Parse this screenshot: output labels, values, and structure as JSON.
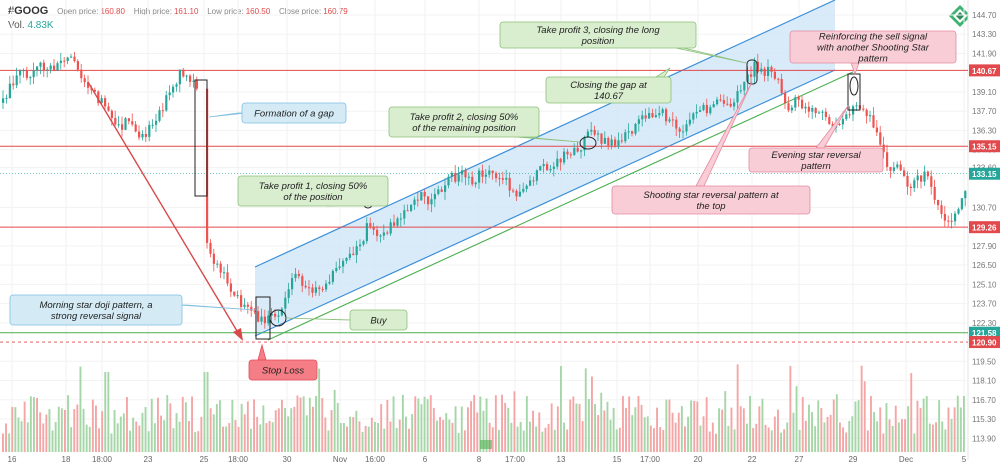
{
  "header": {
    "symbol": "#GOOG",
    "open_label": "Open price:",
    "open_value": "160.80",
    "high_label": "High price:",
    "high_value": "161.10",
    "low_label": "Low price:",
    "low_value": "160.50",
    "close_label": "Close price:",
    "close_value": "160.79",
    "vol_label": "Vol.",
    "vol_value": "4.83K"
  },
  "colors": {
    "up": "#26a69a",
    "down": "#ef5350",
    "red_line": "#e2494c",
    "green_line": "#4caf50",
    "channel_fill": "#cfe6f7",
    "channel_line": "#3b8fd9",
    "arrow": "#d84a4a"
  },
  "chart_data": {
    "type": "candlestick",
    "title": "",
    "ylim": [
      112.9,
      145.5
    ],
    "y_ticks": [
      144.7,
      143.3,
      141.9,
      139.1,
      137.7,
      136.3,
      134.9,
      133.6,
      130.7,
      127.9,
      126.5,
      125.1,
      123.7,
      122.3,
      119.5,
      118.1,
      116.7,
      115.3,
      113.9
    ],
    "x_tick_labels": [
      "16",
      "18",
      "18:00",
      "23",
      "25",
      "18:00",
      "30",
      "Nov",
      "16:00",
      "6",
      "8",
      "17:00",
      "13",
      "15",
      "17:00",
      "20",
      "22",
      "27",
      "29",
      "Dec",
      "5"
    ],
    "price_levels": [
      {
        "label": "140.67",
        "value": 140.67,
        "kind": "resistance"
      },
      {
        "label": "135.15",
        "value": 135.15,
        "kind": "resistance"
      },
      {
        "label": "133.15",
        "value": 133.15,
        "kind": "current"
      },
      {
        "label": "129.26",
        "value": 129.26,
        "kind": "resistance"
      },
      {
        "label": "121.58",
        "value": 121.58,
        "kind": "support"
      },
      {
        "label": "120.90",
        "value": 120.9,
        "kind": "stop"
      }
    ],
    "annotations": [
      {
        "text": "Formation of a gap",
        "style": "blue"
      },
      {
        "text": "Take profit 1, closing 50% of the position",
        "style": "green"
      },
      {
        "text": "Take profit 2, closing 50% of the remaining position",
        "style": "green"
      },
      {
        "text": "Closing the gap at 140.67",
        "style": "green"
      },
      {
        "text": "Take profit 3, closing the long position",
        "style": "green"
      },
      {
        "text": "Reinforcing the sell signal with another Shooting Star pattern",
        "style": "pink"
      },
      {
        "text": "Evening star reversal pattern",
        "style": "pink"
      },
      {
        "text": "Shooting star reversal pattern at the top",
        "style": "pink"
      },
      {
        "text": "Morning star doji pattern, a strong reversal signal",
        "style": "blue"
      },
      {
        "text": "Buy",
        "style": "green"
      },
      {
        "text": "Stop Loss",
        "style": "red"
      }
    ],
    "price_path": [
      [
        0,
        138.3
      ],
      [
        10,
        139.6
      ],
      [
        20,
        140.4
      ],
      [
        30,
        140.2
      ],
      [
        40,
        141.1
      ],
      [
        50,
        140.6
      ],
      [
        60,
        141.4
      ],
      [
        70,
        141.7
      ],
      [
        80,
        140.4
      ],
      [
        90,
        139.0
      ],
      [
        100,
        138.5
      ],
      [
        110,
        137.6
      ],
      [
        120,
        136.3
      ],
      [
        125,
        137.5
      ],
      [
        130,
        137.0
      ],
      [
        140,
        135.8
      ],
      [
        150,
        136.5
      ],
      [
        160,
        137.9
      ],
      [
        170,
        139.2
      ],
      [
        180,
        140.5
      ],
      [
        190,
        140.1
      ],
      [
        197,
        139.6
      ],
      [
        205,
        128.6
      ],
      [
        210,
        127.2
      ],
      [
        215,
        126.7
      ],
      [
        220,
        126.0
      ],
      [
        225,
        125.5
      ],
      [
        230,
        124.5
      ],
      [
        238,
        123.8
      ],
      [
        248,
        123.4
      ],
      [
        255,
        122.6
      ],
      [
        262,
        122.4
      ],
      [
        270,
        123.0
      ],
      [
        278,
        122.8
      ],
      [
        286,
        124.3
      ],
      [
        292,
        126.0
      ],
      [
        300,
        125.4
      ],
      [
        310,
        124.9
      ],
      [
        320,
        124.5
      ],
      [
        330,
        125.8
      ],
      [
        340,
        126.3
      ],
      [
        350,
        127.2
      ],
      [
        360,
        128.0
      ],
      [
        368,
        129.6
      ],
      [
        375,
        128.4
      ],
      [
        382,
        128.9
      ],
      [
        390,
        129.3
      ],
      [
        400,
        130.2
      ],
      [
        410,
        131.0
      ],
      [
        420,
        131.6
      ],
      [
        430,
        131.1
      ],
      [
        440,
        131.9
      ],
      [
        450,
        132.8
      ],
      [
        460,
        133.2
      ],
      [
        470,
        132.6
      ],
      [
        480,
        133.1
      ],
      [
        490,
        133.5
      ],
      [
        500,
        132.8
      ],
      [
        510,
        132.2
      ],
      [
        520,
        131.6
      ],
      [
        530,
        132.7
      ],
      [
        540,
        133.4
      ],
      [
        550,
        133.9
      ],
      [
        560,
        134.3
      ],
      [
        570,
        134.6
      ],
      [
        580,
        135.1
      ],
      [
        590,
        136.2
      ],
      [
        600,
        135.6
      ],
      [
        610,
        135.3
      ],
      [
        620,
        135.8
      ],
      [
        630,
        136.4
      ],
      [
        640,
        137.0
      ],
      [
        650,
        137.6
      ],
      [
        660,
        137.9
      ],
      [
        670,
        136.8
      ],
      [
        680,
        136.2
      ],
      [
        690,
        137.1
      ],
      [
        700,
        137.8
      ],
      [
        710,
        138.0
      ],
      [
        720,
        138.4
      ],
      [
        730,
        138.2
      ],
      [
        740,
        139.1
      ],
      [
        748,
        140.4
      ],
      [
        755,
        141.1
      ],
      [
        762,
        140.6
      ],
      [
        770,
        140.5
      ],
      [
        778,
        139.6
      ],
      [
        786,
        138.0
      ],
      [
        795,
        138.4
      ],
      [
        805,
        138.0
      ],
      [
        815,
        137.7
      ],
      [
        825,
        137.2
      ],
      [
        835,
        136.7
      ],
      [
        845,
        137.4
      ],
      [
        852,
        138.2
      ],
      [
        860,
        137.5
      ],
      [
        868,
        137.3
      ],
      [
        876,
        135.8
      ],
      [
        882,
        135.0
      ],
      [
        888,
        133.2
      ],
      [
        895,
        133.6
      ],
      [
        902,
        132.9
      ],
      [
        910,
        132.3
      ],
      [
        918,
        132.8
      ],
      [
        926,
        133.0
      ],
      [
        934,
        131.0
      ],
      [
        942,
        130.1
      ],
      [
        950,
        129.8
      ],
      [
        958,
        130.6
      ],
      [
        965,
        132.3
      ]
    ]
  }
}
